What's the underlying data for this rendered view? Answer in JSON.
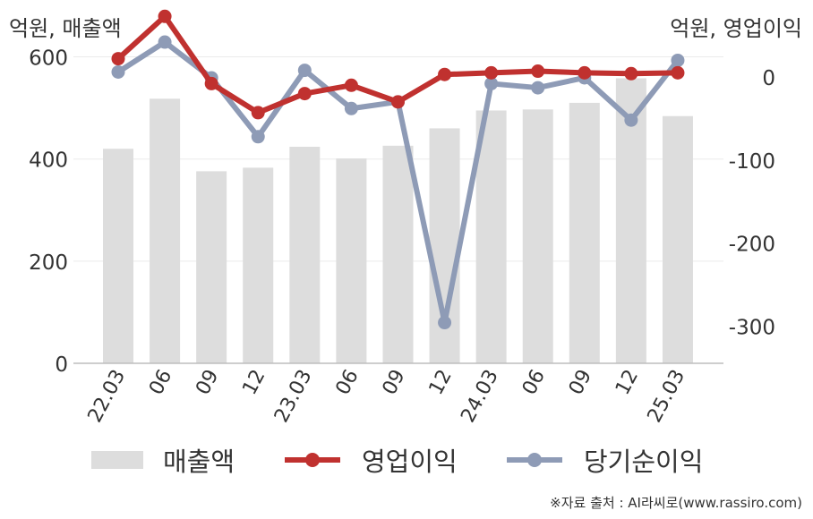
{
  "chart_data": {
    "type": "bar+line",
    "left_unit": "억원, 매출액",
    "right_unit": "억원, 영업이익",
    "categories": [
      "22.03",
      "06",
      "09",
      "12",
      "23.03",
      "06",
      "09",
      "12",
      "24.03",
      "06",
      "09",
      "12",
      "25.03"
    ],
    "left_axis": {
      "ylim": [
        0,
        650
      ],
      "ticks": [
        0,
        200,
        400,
        600
      ]
    },
    "right_axis": {
      "ylim": [
        -345,
        55
      ],
      "ticks": [
        0,
        -100,
        -200,
        -300
      ]
    },
    "grid": true,
    "series": [
      {
        "name": "매출액",
        "kind": "bar",
        "axis": "left",
        "color": "#dddddd",
        "values": [
          420,
          518,
          376,
          383,
          424,
          401,
          426,
          460,
          495,
          497,
          510,
          558,
          484
        ]
      },
      {
        "name": "영업이익",
        "kind": "line",
        "axis": "right",
        "color": "#c0312f",
        "values": [
          22,
          73,
          -8,
          -43,
          -20,
          -10,
          -30,
          3,
          5,
          7,
          5,
          4,
          5
        ]
      },
      {
        "name": "당기순이익",
        "kind": "line",
        "axis": "right",
        "color": "#8e9bb6",
        "values": [
          6,
          42,
          -1,
          -72,
          8,
          -38,
          -30,
          -296,
          -8,
          -13,
          -1,
          -52,
          20
        ]
      }
    ],
    "legend_position": "bottom"
  },
  "source": "※자료 출처 : AI라씨로(www.rassiro.com)"
}
